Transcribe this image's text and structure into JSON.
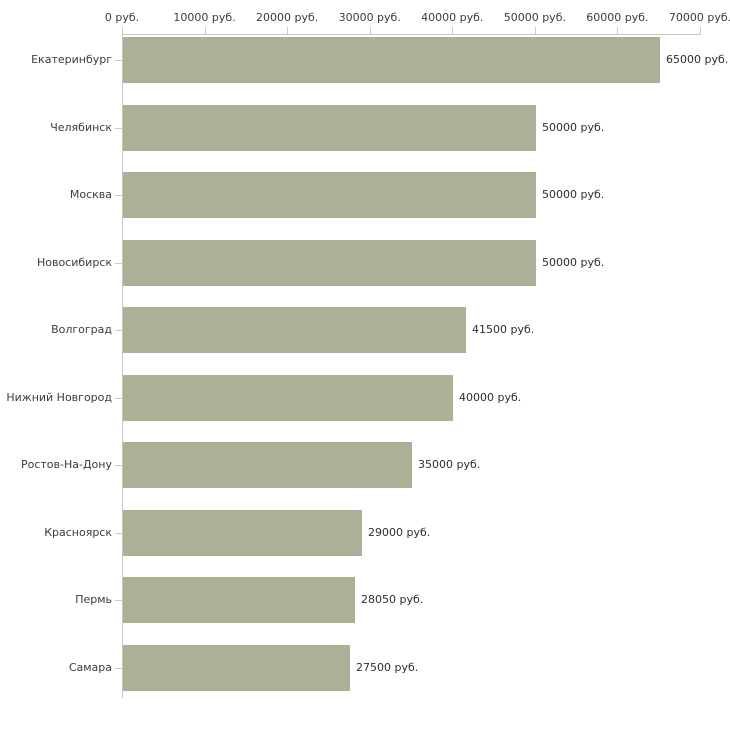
{
  "chart_data": {
    "type": "bar",
    "orientation": "horizontal",
    "title": "",
    "xlabel": "",
    "ylabel": "",
    "unit_suffix": " руб.",
    "categories": [
      "Екатеринбург",
      "Челябинск",
      "Москва",
      "Новосибирск",
      "Волгоград",
      "Нижний Новгород",
      "Ростов-На-Дону",
      "Красноярск",
      "Пермь",
      "Самара"
    ],
    "values": [
      65000,
      50000,
      50000,
      50000,
      41500,
      40000,
      35000,
      29000,
      28050,
      27500
    ],
    "value_labels": [
      "65000 руб.",
      "50000 руб.",
      "50000 руб.",
      "50000 руб.",
      "41500 руб.",
      "40000 руб.",
      "35000 руб.",
      "29000 руб.",
      "28050 руб.",
      "27500 руб."
    ],
    "xlim": [
      0,
      70000
    ],
    "x_ticks": [
      0,
      10000,
      20000,
      30000,
      40000,
      50000,
      60000,
      70000
    ],
    "x_tick_labels": [
      "0 руб.",
      "10000 руб.",
      "20000 руб.",
      "30000 руб.",
      "40000 руб.",
      "50000 руб.",
      "60000 руб.",
      "70000 руб."
    ],
    "legend": null,
    "grid": false,
    "colors": {
      "bar_fill": "#abb197",
      "axis_line": "#c6c6c6",
      "tick_mark": "#cfcfa8",
      "axis_text": "#3c3c3c",
      "value_text": "#2e2e2e",
      "background": "#ffffff"
    }
  }
}
